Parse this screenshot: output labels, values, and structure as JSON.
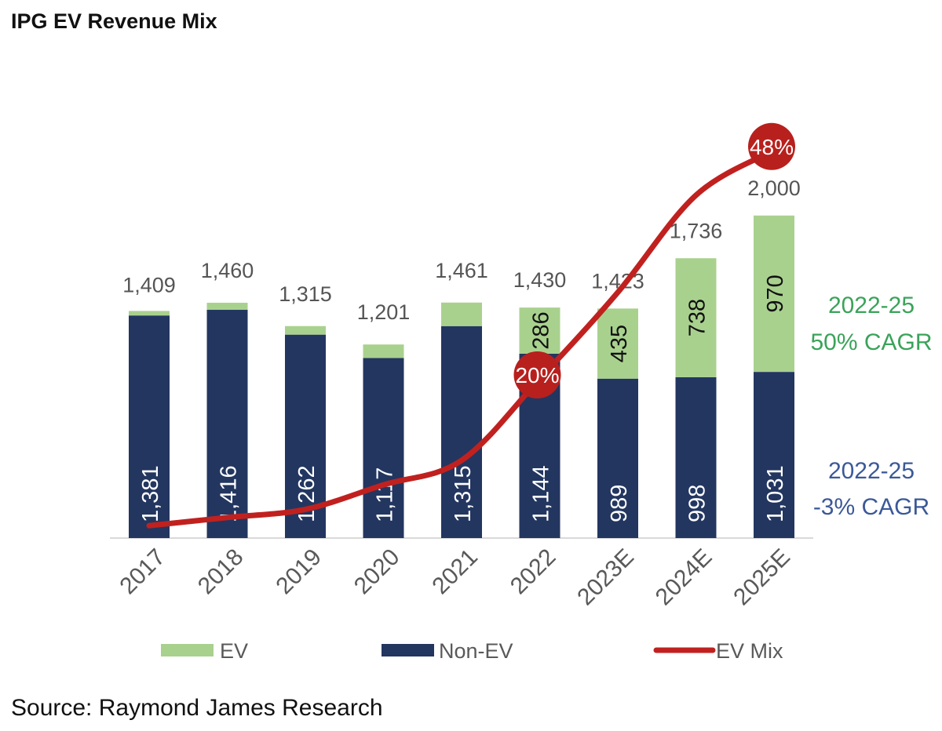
{
  "title": "IPG EV Revenue Mix",
  "source": "Source: Raymond James Research",
  "chart_data": {
    "type": "bar",
    "stacked": true,
    "categories": [
      "2017",
      "2018",
      "2019",
      "2020",
      "2021",
      "2022",
      "2023E",
      "2024E",
      "2025E"
    ],
    "series": [
      {
        "name": "Non-EV",
        "color": "#233660",
        "values": [
          1381,
          1416,
          1262,
          1117,
          1315,
          1144,
          989,
          998,
          1031
        ],
        "labels": [
          "1,381",
          "1,416",
          "1,262",
          "1,117",
          "1,315",
          "1,144",
          "989",
          "998",
          "1,031"
        ]
      },
      {
        "name": "EV",
        "color": "#a9d18e",
        "values": [
          28,
          44,
          53,
          84,
          146,
          286,
          435,
          738,
          970
        ],
        "labels": [
          "",
          "",
          "",
          "",
          "",
          "286",
          "435",
          "738",
          "970"
        ]
      },
      {
        "name": "EV Mix",
        "type": "line",
        "color": "#c0211f",
        "values_pct": [
          2.0,
          3.0,
          4.0,
          7.0,
          10.0,
          20,
          30.6,
          42.5,
          48
        ]
      }
    ],
    "totals": [
      "1,409",
      "1,460",
      "1,315",
      "1,201",
      "1,461",
      "1,430",
      "1,423",
      "1,736",
      "2,000"
    ],
    "highlighted_points": [
      {
        "category": "2022",
        "label": "20%"
      },
      {
        "category": "2025E",
        "label": "48%"
      }
    ],
    "annotations": [
      {
        "lines": [
          "2022-25",
          "50% CAGR"
        ],
        "color": "#3aa35a"
      },
      {
        "lines": [
          "2022-25",
          "-3% CAGR"
        ],
        "color": "#3b5998"
      }
    ],
    "legend": {
      "position": "bottom",
      "entries": [
        "EV",
        "Non-EV",
        "EV Mix"
      ]
    },
    "ylim": [
      0,
      2000
    ]
  }
}
